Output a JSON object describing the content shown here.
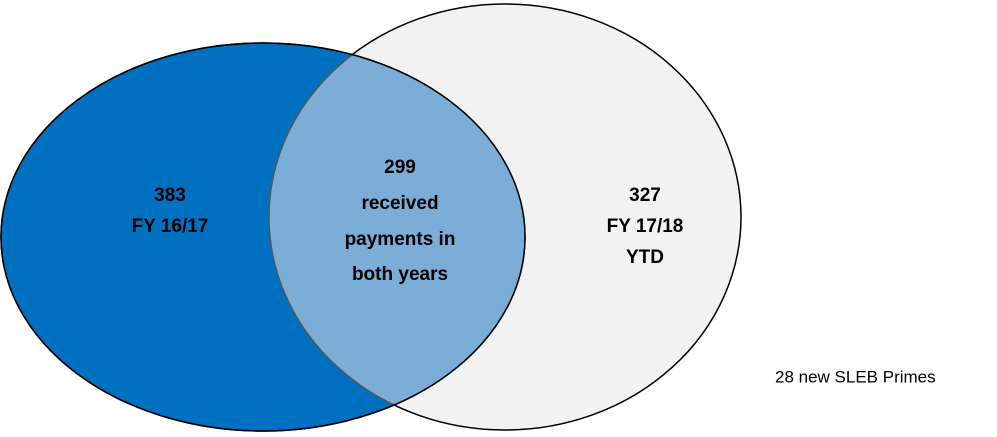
{
  "sets": [
    {
      "lines": [
        "383",
        "FY 16/17"
      ]
    },
    {
      "lines": [
        "327",
        "FY 17/18",
        "YTD"
      ]
    }
  ],
  "intersection": {
    "lines": [
      "299",
      "received",
      "payments in",
      "both years"
    ]
  },
  "note": "28 new SLEB Primes"
}
